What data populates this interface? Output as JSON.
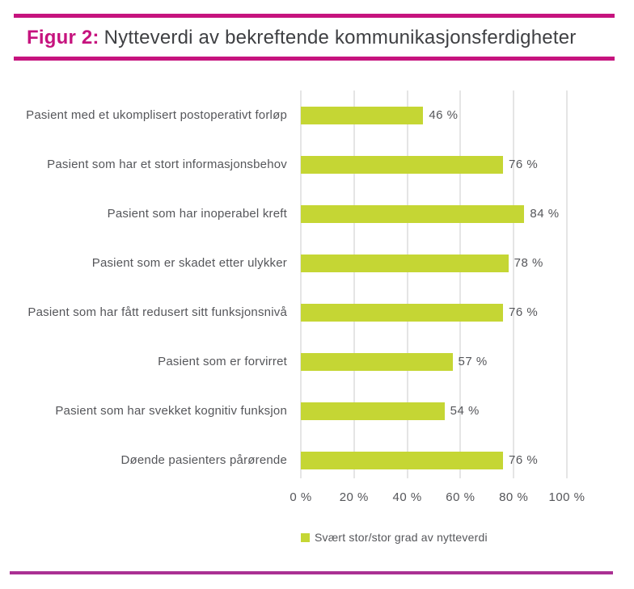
{
  "header": {
    "figure_label": "Figur 2:",
    "title": "Nytteverdi av bekreftende kommunikasjonsferdigheter"
  },
  "chart_data": {
    "type": "bar",
    "orientation": "horizontal",
    "title": "Figur 2: Nytteverdi av bekreftende kommunikasjonsferdigheter",
    "categories": [
      "Pasient med et ukomplisert postoperativt forløp",
      "Pasient som har et stort informasjonsbehov",
      "Pasient som har inoperabel kreft",
      "Pasient som er skadet etter ulykker",
      "Pasient som har fått redusert sitt funksjonsnivå",
      "Pasient som er forvirret",
      "Pasient som har svekket kognitiv funksjon",
      "Døende pasienters pårørende"
    ],
    "values": [
      46,
      76,
      84,
      78,
      76,
      57,
      54,
      76
    ],
    "value_labels": [
      "46 %",
      "76 %",
      "84 %",
      "78 %",
      "76 %",
      "57 %",
      "54 %",
      "76 %"
    ],
    "xlim": [
      0,
      100
    ],
    "x_ticks": [
      0,
      20,
      40,
      60,
      80,
      100
    ],
    "x_tick_labels": [
      "0 %",
      "20 %",
      "40 %",
      "60 %",
      "80 %",
      "100 %"
    ],
    "grid": "vertical",
    "legend_position": "bottom",
    "legend": [
      {
        "label": "Svært stor/stor grad av nytteverdi",
        "color": "#c5d634"
      }
    ],
    "bar_color": "#c5d634"
  },
  "colors": {
    "accent_magenta": "#c6137e",
    "bottom_rule_magenta": "#aa3093",
    "bar_green": "#c5d634",
    "gridline_gray": "#cbcbcb",
    "text_gray": "#55565a",
    "title_text": "#3f4043"
  }
}
